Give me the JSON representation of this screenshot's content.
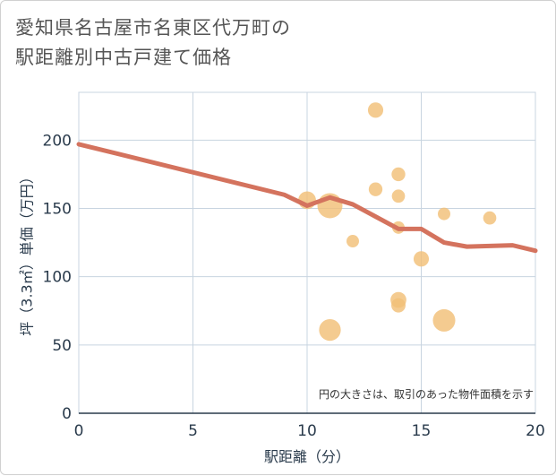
{
  "title": {
    "line1": "愛知県名古屋市名東区代万町の",
    "line2": "駅距離別中古戸建て価格"
  },
  "chart_data": {
    "type": "scatter",
    "title": "愛知県名古屋市名東区代万町の駅距離別中古戸建て価格",
    "xlabel": "駅距離（分）",
    "ylabel": "坪（3.3㎡）単価（万円）",
    "xlim": [
      0,
      20
    ],
    "ylim": [
      0,
      235
    ],
    "x_ticks": [
      0,
      5,
      10,
      15,
      20
    ],
    "y_ticks": [
      0,
      50,
      100,
      150,
      200
    ],
    "grid": true,
    "note": "円の大きさは、取引のあった物件面積を示す",
    "colors": {
      "bubble": "#f2c078",
      "line": "#d4735e",
      "grid": "#c8d4e0"
    },
    "bubbles": [
      {
        "x": 10,
        "y": 156,
        "size": 2
      },
      {
        "x": 11,
        "y": 152,
        "size": 4
      },
      {
        "x": 11,
        "y": 61,
        "size": 3
      },
      {
        "x": 12,
        "y": 126,
        "size": 1
      },
      {
        "x": 13,
        "y": 222,
        "size": 1.5
      },
      {
        "x": 13,
        "y": 164,
        "size": 1.2
      },
      {
        "x": 14,
        "y": 175,
        "size": 1.2
      },
      {
        "x": 14,
        "y": 159,
        "size": 1.1
      },
      {
        "x": 14,
        "y": 136,
        "size": 1
      },
      {
        "x": 14,
        "y": 83,
        "size": 1.6
      },
      {
        "x": 14,
        "y": 79,
        "size": 1.3
      },
      {
        "x": 15,
        "y": 113,
        "size": 1.5
      },
      {
        "x": 16,
        "y": 146,
        "size": 1
      },
      {
        "x": 16,
        "y": 68,
        "size": 3.2
      },
      {
        "x": 18,
        "y": 143,
        "size": 1.1
      }
    ],
    "trend_line": {
      "x": [
        0,
        9,
        10,
        11,
        12,
        13,
        14,
        15,
        16,
        17,
        19,
        20
      ],
      "y": [
        197,
        160,
        152,
        158,
        153,
        144,
        135,
        135,
        125,
        122,
        123,
        119
      ]
    }
  }
}
